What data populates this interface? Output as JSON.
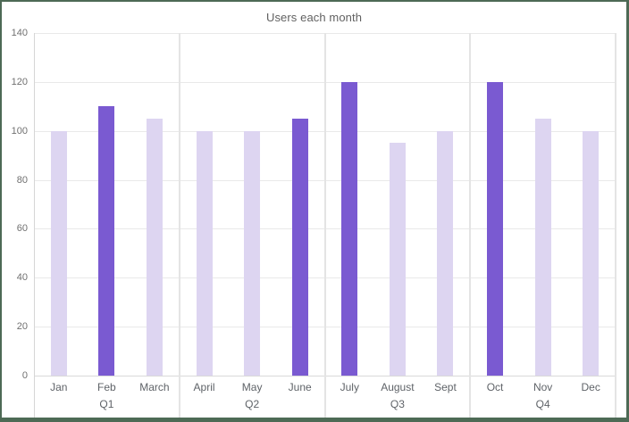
{
  "title": "Users each month",
  "colors": {
    "frame_border": "#4d6a55",
    "bar_default": "#ddd5f1",
    "bar_emphasis": "#7a5ad1",
    "grid": "#e9e9e9",
    "axis_text": "#707070",
    "label_text": "#5f6368"
  },
  "chart_data": {
    "type": "bar",
    "title": "Users each month",
    "categories": [
      "Jan",
      "Feb",
      "March",
      "April",
      "May",
      "June",
      "July",
      "August",
      "Sept",
      "Oct",
      "Nov",
      "Dec"
    ],
    "values": [
      100,
      110,
      105,
      100,
      100,
      105,
      120,
      95,
      100,
      120,
      105,
      100
    ],
    "emphasized_months": [
      "Feb",
      "June",
      "July",
      "Oct"
    ],
    "group_labels": [
      "Q1",
      "Q2",
      "Q3",
      "Q4"
    ],
    "group_size": 3,
    "xlabel": "",
    "ylabel": "",
    "ylim": [
      0,
      140
    ],
    "yticks": [
      0,
      20,
      40,
      60,
      80,
      100,
      120,
      140
    ],
    "grid": "horizontal",
    "legend_position": "none",
    "bar_color_default": "#ddd5f1",
    "bar_color_emphasis": "#7a5ad1"
  }
}
